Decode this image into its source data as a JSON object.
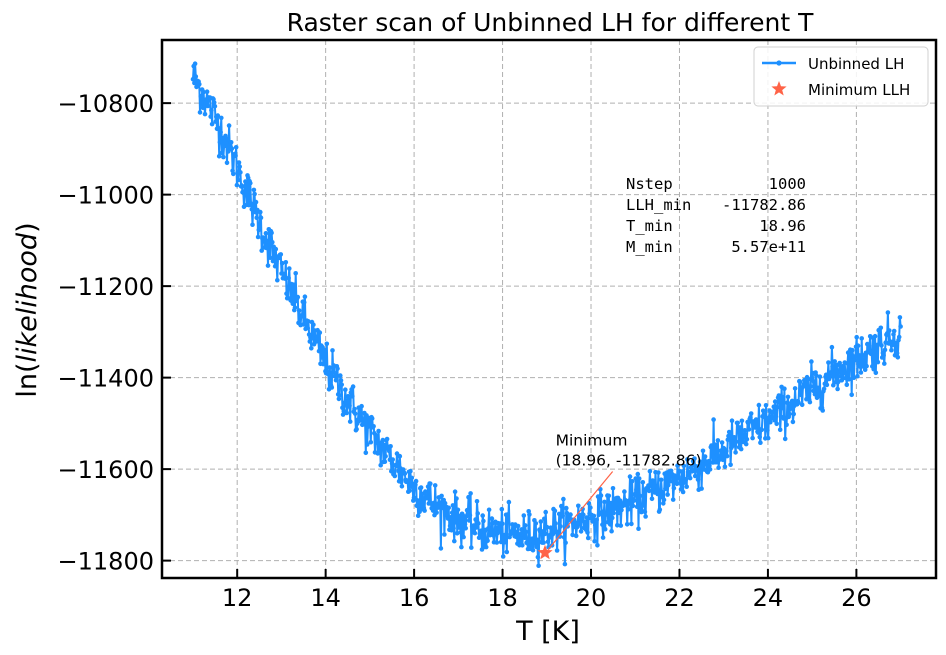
{
  "chart_data": {
    "type": "line",
    "title": "Raster scan of Unbinned LH for different T",
    "xlabel": "T [K]",
    "ylabel_prefix": "ln(",
    "ylabel_italic": "likelihood",
    "ylabel_suffix": ")",
    "xlim": [
      10.3,
      27.8
    ],
    "ylim": [
      -11838,
      -10662
    ],
    "xticks": [
      12,
      14,
      16,
      18,
      20,
      22,
      24,
      26
    ],
    "xtick_labels": [
      "12",
      "14",
      "16",
      "18",
      "20",
      "22",
      "24",
      "26"
    ],
    "yticks": [
      -10800,
      -11000,
      -11200,
      -11400,
      -11600,
      -11800
    ],
    "ytick_labels": [
      "−10800",
      "−11000",
      "−11200",
      "−11400",
      "−11600",
      "−11800"
    ],
    "grid": true,
    "legend_position": "top-right",
    "series": [
      {
        "name": "Unbinned LH",
        "color": "#1e90ff",
        "marker": "dot",
        "x_range": [
          11.0,
          27.0
        ],
        "n_points": 1000,
        "x": [
          11.0,
          11.5,
          12.0,
          12.5,
          13.0,
          13.5,
          14.0,
          14.5,
          15.0,
          15.5,
          16.0,
          16.5,
          17.0,
          17.5,
          18.0,
          18.5,
          19.0,
          19.5,
          20.0,
          20.5,
          21.0,
          21.5,
          22.0,
          22.5,
          23.0,
          23.5,
          24.0,
          24.5,
          25.0,
          25.5,
          26.0,
          26.5,
          27.0
        ],
        "y": [
          -10740,
          -10830,
          -10940,
          -11060,
          -11170,
          -11270,
          -11370,
          -11450,
          -11520,
          -11580,
          -11640,
          -11680,
          -11710,
          -11730,
          -11740,
          -11745,
          -11735,
          -11720,
          -11705,
          -11690,
          -11670,
          -11645,
          -11620,
          -11590,
          -11560,
          -11525,
          -11495,
          -11460,
          -11425,
          -11390,
          -11360,
          -11330,
          -11300
        ],
        "noise": 25
      },
      {
        "name": "Minimum LLH",
        "color": "#ff6347",
        "marker": "star",
        "x": [
          18.96
        ],
        "y": [
          -11782.86
        ]
      }
    ],
    "annotation": {
      "text_line1": "Minimum",
      "text_line2": "(18.96, -11782.86)",
      "x": 18.96,
      "y": -11782.86,
      "text_x": 19.2,
      "text_y": -11592,
      "color": "#ff6347"
    },
    "stats": {
      "rows": [
        {
          "label": "Nstep",
          "value": "1000"
        },
        {
          "label": "LLH_min",
          "value": "-11782.86"
        },
        {
          "label": "T_min",
          "value": "18.96"
        },
        {
          "label": "M_min",
          "value": "5.57e+11"
        }
      ]
    }
  }
}
